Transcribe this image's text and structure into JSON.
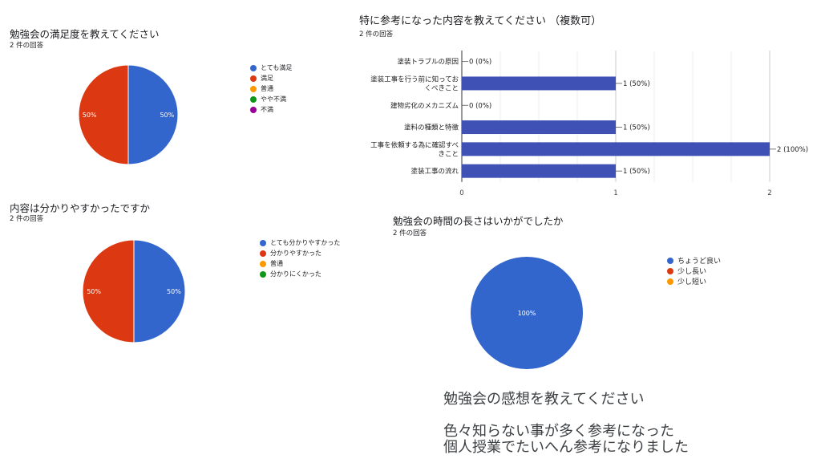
{
  "charts": {
    "satisfaction": {
      "title": "勉強会の満足度を教えてください",
      "subtitle": "2 件の回答"
    },
    "understanding": {
      "title": "内容は分かりやすかったですか",
      "subtitle": "2 件の回答"
    },
    "topics": {
      "title": "特に参考になった内容を教えてください （複数可）",
      "subtitle": "2 件の回答"
    },
    "length": {
      "title": "勉強会の時間の長さはいかがでしたか",
      "subtitle": "2 件の回答"
    }
  },
  "comments": {
    "heading": "勉強会の感想を教えてください",
    "lines": [
      "色々知らない事が多く参考になった",
      "個人授業でたいへん参考になりました"
    ]
  },
  "chart_data": [
    {
      "id": "satisfaction",
      "type": "pie",
      "title": "勉強会の満足度を教えてください",
      "labels": [
        "とても満足",
        "満足",
        "普通",
        "やや不満",
        "不満"
      ],
      "values": [
        1,
        1,
        0,
        0,
        0
      ],
      "slice_labels": [
        "50%",
        "50%",
        "",
        "",
        ""
      ],
      "colors": [
        "#3366cc",
        "#dc3912",
        "#ff9900",
        "#109618",
        "#990099"
      ],
      "legend": "right"
    },
    {
      "id": "understanding",
      "type": "pie",
      "title": "内容は分かりやすかったですか",
      "labels": [
        "とても分かりやすかった",
        "分かりやすかった",
        "普通",
        "分かりにくかった"
      ],
      "values": [
        1,
        1,
        0,
        0
      ],
      "slice_labels": [
        "50%",
        "50%",
        "",
        ""
      ],
      "colors": [
        "#3366cc",
        "#dc3912",
        "#ff9900",
        "#109618"
      ],
      "legend": "right"
    },
    {
      "id": "topics",
      "type": "bar",
      "title": "特に参考になった内容を教えてください （複数可）",
      "categories": [
        "塗装トラブルの原因",
        "塗装工事を行う前に知っておくべきこと",
        "建物劣化のメカニズム",
        "塗料の種類と特徴",
        "工事を依頼する為に確認すべきこと",
        "塗装工事の流れ"
      ],
      "values": [
        0,
        1,
        0,
        1,
        2,
        1
      ],
      "value_labels": [
        "0 (0%)",
        "1 (50%)",
        "0 (0%)",
        "1 (50%)",
        "2 (100%)",
        "1 (50%)"
      ],
      "xlim": [
        0,
        2
      ],
      "xticks": [
        "0",
        "1",
        "2"
      ],
      "color": "#3f51b5",
      "orientation": "horizontal",
      "grid": true
    },
    {
      "id": "length",
      "type": "pie",
      "title": "勉強会の時間の長さはいかがでしたか",
      "labels": [
        "ちょうど良い",
        "少し長い",
        "少し短い"
      ],
      "values": [
        2,
        0,
        0
      ],
      "slice_labels": [
        "100%",
        "",
        ""
      ],
      "colors": [
        "#3366cc",
        "#dc3912",
        "#ff9900"
      ],
      "legend": "right"
    }
  ]
}
